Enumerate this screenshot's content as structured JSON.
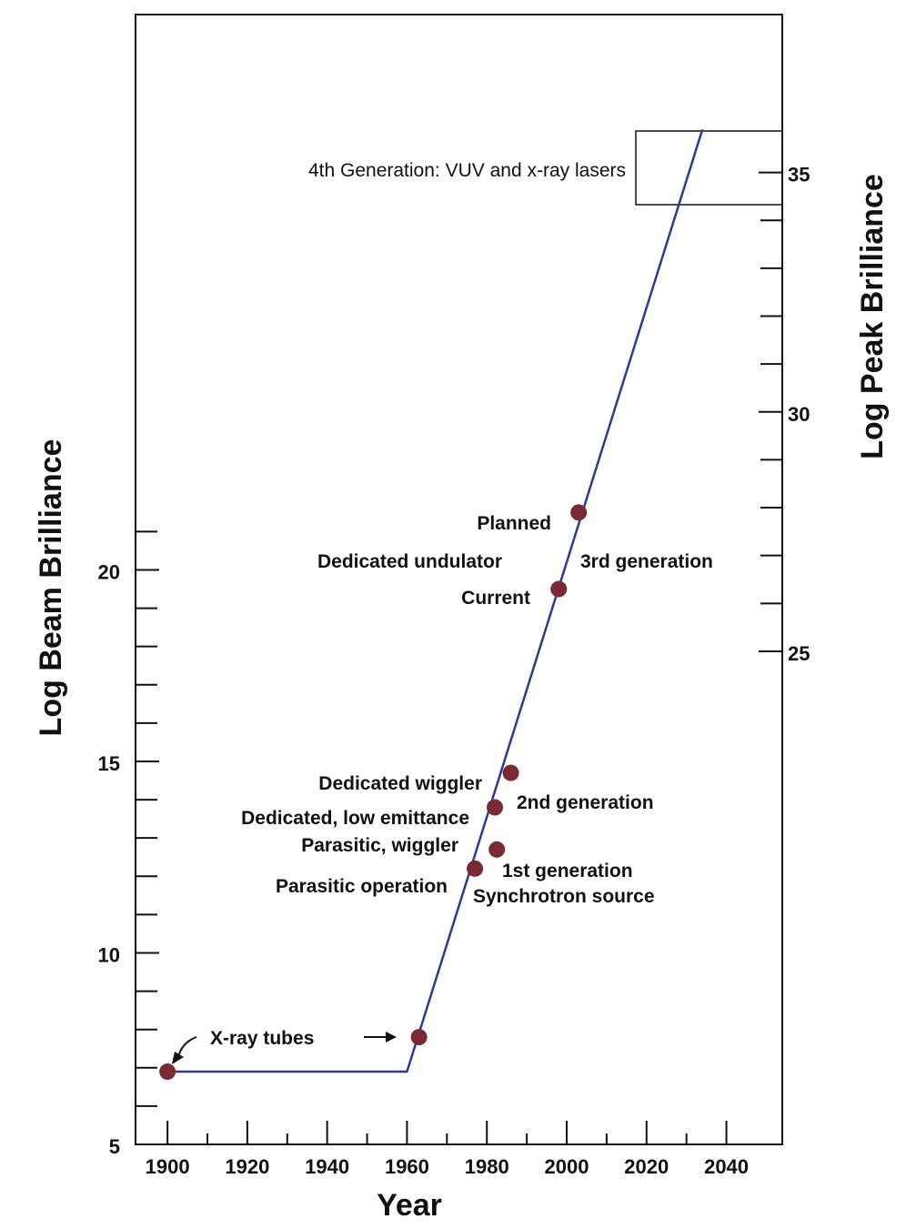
{
  "chart_data": {
    "type": "line",
    "title": "",
    "xlabel": "Year",
    "ylabel": "Log Beam Brilliance",
    "y2label": "Log Peak Brilliance",
    "xlim": [
      1892,
      2054
    ],
    "ylim": [
      5,
      34.5
    ],
    "y2lim": [
      14.7,
      38.3
    ],
    "x_ticks": [
      1900,
      1920,
      1940,
      1960,
      1980,
      2000,
      2020,
      2040
    ],
    "y_ticks": [
      5,
      10,
      15,
      20
    ],
    "y2_ticks": [
      25,
      30,
      35
    ],
    "grid": false,
    "line_color": "#2b3a9a",
    "point_color": "#7a2a33",
    "series": [
      {
        "values": [
          {
            "x": 1900,
            "y": 6.9
          },
          {
            "x": 1960,
            "y": 6.9
          },
          {
            "x": 2034,
            "y": 31.5
          }
        ]
      }
    ],
    "points": [
      {
        "x": 1900,
        "y": 6.9
      },
      {
        "x": 1963,
        "y": 7.8
      },
      {
        "x": 1977,
        "y": 12.2
      },
      {
        "x": 1982.5,
        "y": 12.7
      },
      {
        "x": 1982,
        "y": 13.8
      },
      {
        "x": 1986,
        "y": 14.7
      },
      {
        "x": 1998,
        "y": 19.5
      },
      {
        "x": 2003,
        "y": 21.5
      }
    ],
    "annotations": {
      "xray_tubes": "X-ray tubes",
      "parasitic_operation": "Parasitic operation",
      "parasitic_wiggler": "Parasitic, wiggler",
      "dedicated_low_emittance": "Dedicated, low emittance",
      "dedicated_wiggler": "Dedicated wiggler",
      "first_generation": "1st generation",
      "synchrotron_source": "Synchrotron source",
      "second_generation": "2nd generation",
      "current": "Current",
      "dedicated_undulator": "Dedicated undulator",
      "third_generation": "3rd generation",
      "planned": "Planned",
      "fourth_generation": "4th Generation: VUV and x-ray lasers"
    }
  }
}
